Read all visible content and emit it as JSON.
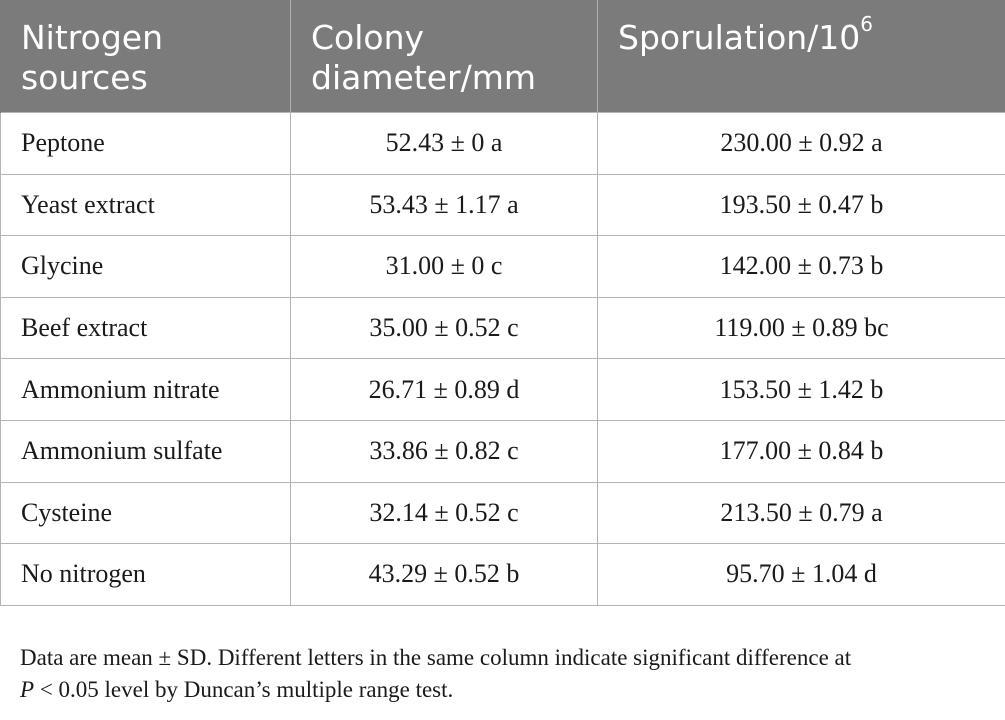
{
  "table": {
    "headers": {
      "col1_line1": "Nitrogen",
      "col1_line2": "sources",
      "col2_line1": "Colony",
      "col2_line2": "diameter/mm",
      "col3_base": "Sporulation/10",
      "col3_sup": "6"
    },
    "rows": [
      {
        "source": "Peptone",
        "diameter": "52.43 ± 0 a",
        "sporulation": "230.00 ± 0.92 a"
      },
      {
        "source": "Yeast extract",
        "diameter": "53.43 ± 1.17 a",
        "sporulation": "193.50 ± 0.47 b"
      },
      {
        "source": "Glycine",
        "diameter": "31.00 ± 0 c",
        "sporulation": "142.00 ± 0.73 b"
      },
      {
        "source": "Beef extract",
        "diameter": "35.00 ± 0.52 c",
        "sporulation": "119.00 ± 0.89 bc"
      },
      {
        "source": "Ammonium nitrate",
        "diameter": "26.71 ± 0.89 d",
        "sporulation": "153.50 ± 1.42 b"
      },
      {
        "source": "Ammonium sulfate",
        "diameter": "33.86 ± 0.82 c",
        "sporulation": "177.00 ± 0.84 b"
      },
      {
        "source": "Cysteine",
        "diameter": "32.14 ± 0.52 c",
        "sporulation": "213.50 ± 0.79 a"
      },
      {
        "source": "No nitrogen",
        "diameter": "43.29 ± 0.52 b",
        "sporulation": "95.70 ± 1.04 d"
      }
    ]
  },
  "footnote": {
    "line1": "Data are mean ± SD. Different letters in the same column indicate significant difference at",
    "line2_italic": "P",
    "line2_rest": " < 0.05 level by Duncan’s multiple range test."
  }
}
